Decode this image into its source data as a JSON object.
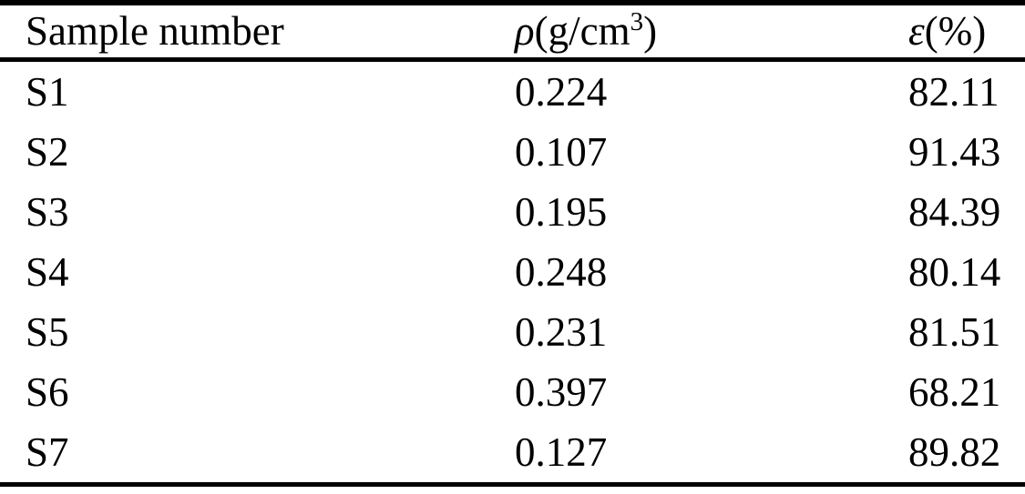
{
  "page": {
    "background_color": "#ffffff",
    "text_color": "#000000",
    "rule_color": "#000000"
  },
  "table": {
    "header": {
      "sample": "Sample number",
      "density_symbol": "ρ",
      "density_unit_open": "(g/cm",
      "density_sup": "3",
      "density_unit_close": ")",
      "porosity_symbol": "ε",
      "porosity_unit": "(%)"
    },
    "rows": [
      {
        "sample": "S1",
        "density": "0.224",
        "porosity": "82.11"
      },
      {
        "sample": "S2",
        "density": "0.107",
        "porosity": "91.43"
      },
      {
        "sample": "S3",
        "density": "0.195",
        "porosity": "84.39"
      },
      {
        "sample": "S4",
        "density": "0.248",
        "porosity": "80.14"
      },
      {
        "sample": "S5",
        "density": "0.231",
        "porosity": "81.51"
      },
      {
        "sample": "S6",
        "density": "0.397",
        "porosity": "68.21"
      },
      {
        "sample": "S7",
        "density": "0.127",
        "porosity": "89.82"
      }
    ]
  }
}
